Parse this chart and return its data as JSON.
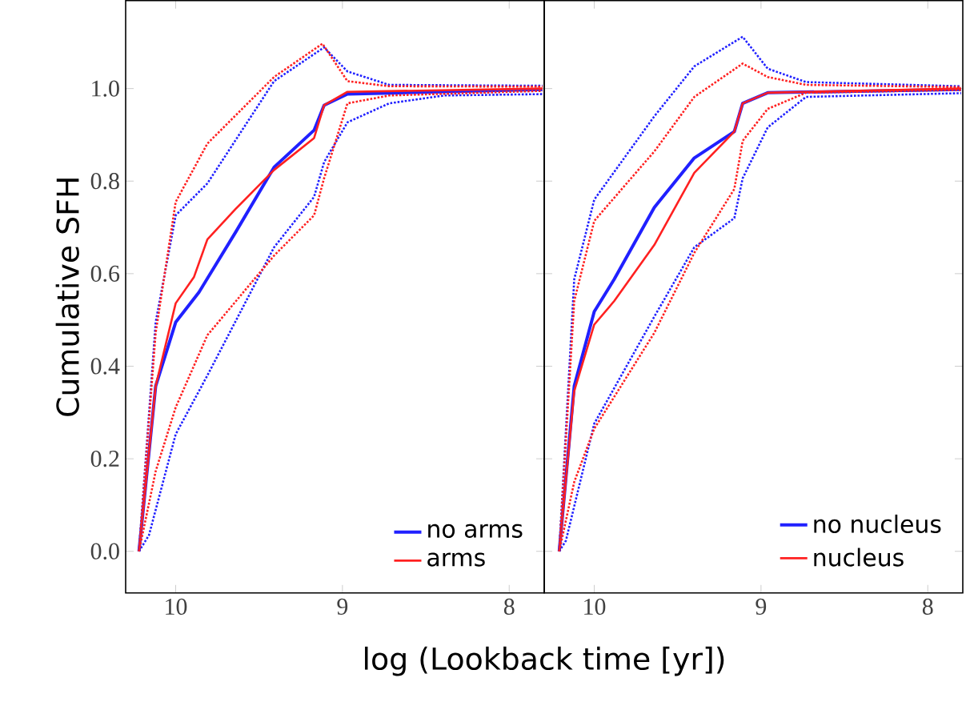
{
  "chart_data": [
    {
      "type": "line",
      "xlabel": "log (Lookback time [yr])",
      "ylabel": "Cumulative SFH",
      "xlim": [
        10.3,
        7.79
      ],
      "ylim": [
        -0.09,
        1.19
      ],
      "xticks": [
        10,
        9,
        8
      ],
      "yticks": [
        {
          "value": 0,
          "label": "0.0"
        },
        {
          "value": 0.2,
          "label": "0.2"
        },
        {
          "value": 0.4,
          "label": "0.4"
        },
        {
          "value": 0.6,
          "label": "0.6"
        },
        {
          "value": 0.8,
          "label": "0.8"
        },
        {
          "value": 1,
          "label": "1.0"
        }
      ],
      "legend": "bottom right",
      "grid": false,
      "marker": "none",
      "series": [
        {
          "name": "no arms",
          "color": "#2020ff",
          "line_style": "solid",
          "x": [
            10.22,
            10.12,
            10.0,
            9.86,
            9.64,
            9.41,
            9.17,
            9.11,
            8.97,
            7.8
          ],
          "values": [
            0,
            0.357,
            0.495,
            0.56,
            0.69,
            0.83,
            0.91,
            0.964,
            0.988,
            0.998
          ]
        },
        {
          "name": "arms",
          "color": "#ff2020",
          "line_style": "solid",
          "x": [
            10.22,
            10.12,
            10.0,
            9.89,
            9.81,
            9.64,
            9.41,
            9.17,
            9.11,
            8.97,
            7.8
          ],
          "values": [
            0,
            0.357,
            0.536,
            0.593,
            0.674,
            0.74,
            0.824,
            0.893,
            0.964,
            0.993,
            1.0
          ]
        },
        {
          "color": "#2020ff",
          "line_style": "dotted",
          "x": [
            10.22,
            10.12,
            10.0,
            9.81,
            9.41,
            9.11,
            8.97,
            8.72,
            7.8
          ],
          "values": [
            0,
            0.495,
            0.726,
            0.795,
            1.016,
            1.089,
            1.037,
            1.008,
            1.006
          ]
        },
        {
          "color": "#ff2020",
          "line_style": "dotted",
          "x": [
            10.22,
            10.12,
            10.0,
            9.81,
            9.41,
            9.12,
            8.97,
            8.72,
            7.8
          ],
          "values": [
            0,
            0.472,
            0.755,
            0.881,
            1.025,
            1.097,
            1.016,
            1.005,
            1.004
          ]
        },
        {
          "color": "#2020ff",
          "line_style": "dotted",
          "x": [
            10.22,
            10.16,
            10.0,
            9.81,
            9.41,
            9.17,
            9.11,
            8.97,
            8.72,
            8.39,
            7.8
          ],
          "values": [
            0,
            0.035,
            0.253,
            0.38,
            0.657,
            0.766,
            0.841,
            0.927,
            0.968,
            0.985,
            0.988
          ]
        },
        {
          "color": "#ff2020",
          "line_style": "dotted",
          "x": [
            10.22,
            10.12,
            10.0,
            9.81,
            9.41,
            9.17,
            9.11,
            8.97,
            8.72,
            7.8
          ],
          "values": [
            0,
            0.173,
            0.311,
            0.467,
            0.639,
            0.726,
            0.806,
            0.968,
            0.985,
            0.995
          ]
        }
      ]
    },
    {
      "type": "line",
      "xlim": [
        10.3,
        7.79
      ],
      "ylim": [
        -0.09,
        1.19
      ],
      "xticks": [
        10,
        9,
        8
      ],
      "yticks": [
        {
          "value": 0,
          "label": null
        },
        {
          "value": 0.2,
          "label": null
        },
        {
          "value": 0.4,
          "label": null
        },
        {
          "value": 0.6,
          "label": null
        },
        {
          "value": 0.8,
          "label": null
        },
        {
          "value": 1,
          "label": null
        }
      ],
      "tick_labels": "x",
      "legend": "bottom right",
      "grid": false,
      "marker": "none",
      "series": [
        {
          "name": "no nucleus",
          "color": "#2020ff",
          "line_style": "solid",
          "x": [
            10.21,
            10.12,
            10.0,
            9.88,
            9.64,
            9.4,
            9.16,
            9.11,
            8.96,
            7.8
          ],
          "values": [
            0,
            0.357,
            0.518,
            0.588,
            0.743,
            0.85,
            0.907,
            0.968,
            0.991,
            0.998
          ]
        },
        {
          "name": "nucleus",
          "color": "#ff2020",
          "line_style": "solid",
          "x": [
            10.21,
            10.12,
            10.0,
            9.88,
            9.64,
            9.4,
            9.16,
            9.11,
            8.96,
            7.8
          ],
          "values": [
            0,
            0.346,
            0.49,
            0.541,
            0.662,
            0.818,
            0.907,
            0.968,
            0.991,
            1.0
          ]
        },
        {
          "color": "#2020ff",
          "line_style": "dotted",
          "x": [
            10.21,
            10.12,
            10.0,
            9.64,
            9.4,
            9.11,
            8.96,
            8.73,
            7.8
          ],
          "values": [
            0,
            0.588,
            0.76,
            0.94,
            1.048,
            1.112,
            1.043,
            1.014,
            1.005
          ]
        },
        {
          "color": "#ff2020",
          "line_style": "dotted",
          "x": [
            10.21,
            10.12,
            10.0,
            9.64,
            9.4,
            9.11,
            8.96,
            8.73,
            7.8
          ],
          "values": [
            0,
            0.541,
            0.714,
            0.864,
            0.982,
            1.054,
            1.025,
            1.008,
            1.003
          ]
        },
        {
          "color": "#2020ff",
          "line_style": "dotted",
          "x": [
            10.21,
            10.17,
            10.0,
            9.64,
            9.4,
            9.16,
            9.11,
            8.96,
            8.73,
            7.8
          ],
          "values": [
            0,
            0.023,
            0.276,
            0.507,
            0.657,
            0.72,
            0.806,
            0.916,
            0.982,
            0.99
          ]
        },
        {
          "color": "#ff2020",
          "line_style": "dotted",
          "x": [
            10.21,
            10.12,
            10.0,
            9.64,
            9.4,
            9.16,
            9.11,
            8.96,
            8.73,
            7.8
          ],
          "values": [
            0,
            0.15,
            0.265,
            0.472,
            0.645,
            0.783,
            0.887,
            0.956,
            0.991,
            0.997
          ]
        }
      ]
    }
  ]
}
